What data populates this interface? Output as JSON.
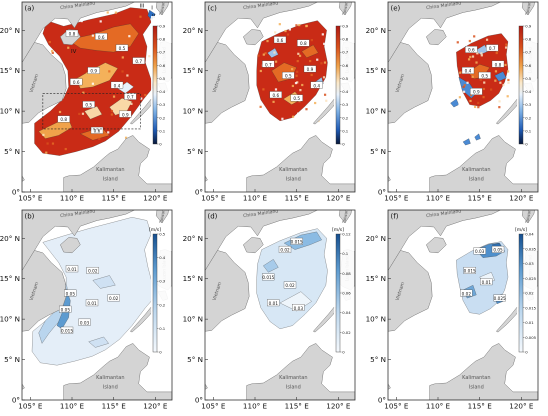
{
  "figure": {
    "x_tick_labels": [
      "105° E",
      "110° E",
      "115° E",
      "120° E"
    ],
    "y_tick_labels": [
      "0°",
      "5° N",
      "10° N",
      "15° N",
      "20° N"
    ],
    "geo_labels": {
      "mainland": "China Mainland",
      "vietnam": "Vietnam",
      "taiwan": "Taiwan",
      "luzon": "Luzon Island",
      "kalimantan_1": "Kalimantan",
      "kalimantan_2": "Island"
    },
    "contour_label_samples": [
      "0.8",
      "0.6",
      "0.5",
      "0.7",
      "0.9",
      "0.4",
      "0.03",
      "0.05",
      "0.01",
      "0.015",
      "0.02",
      "0.025"
    ],
    "roman_markers": [
      "I",
      "II",
      "III",
      "IV"
    ]
  },
  "colors": {
    "land": "#d4d4d4",
    "coast": "#777777",
    "ocean": "#ffffff"
  },
  "panels": [
    {
      "id": "a",
      "label": "(a)",
      "type": "ratio",
      "cbar_unit": "",
      "cbar_ticks": [
        "0.9",
        "0.8",
        "0.7",
        "0.6",
        "0.5",
        "0.4",
        "0.3",
        "0.2",
        "0.1",
        "0"
      ]
    },
    {
      "id": "c",
      "label": "(c)",
      "type": "ratio",
      "cbar_unit": "",
      "cbar_ticks": [
        "0.9",
        "0.8",
        "0.7",
        "0.6",
        "0.5",
        "0.4",
        "0.3",
        "0.2",
        "0.1",
        "0"
      ]
    },
    {
      "id": "e",
      "label": "(e)",
      "type": "ratio",
      "cbar_unit": "",
      "cbar_ticks": [
        "0.9",
        "0.8",
        "0.7",
        "0.6",
        "0.5",
        "0.4",
        "0.3",
        "0.2",
        "0.1",
        "0"
      ]
    },
    {
      "id": "b",
      "label": "(b)",
      "type": "velocity",
      "cbar_unit": "[m/s]",
      "cbar_ticks": [
        "0.5",
        "0.4",
        "0.3",
        "0.2",
        "0.1",
        "0"
      ]
    },
    {
      "id": "d",
      "label": "(d)",
      "type": "velocity",
      "cbar_unit": "[m/s]",
      "cbar_ticks": [
        "0.12",
        "0.1",
        "0.08",
        "0.06",
        "0.04",
        "0.02",
        "0"
      ]
    },
    {
      "id": "f",
      "label": "(f)",
      "type": "velocity",
      "cbar_unit": "[m/s]",
      "cbar_ticks": [
        "0.04",
        "0.035",
        "0.03",
        "0.025",
        "0.02",
        "0.015",
        "0.01",
        "0.005",
        "0"
      ]
    }
  ]
}
